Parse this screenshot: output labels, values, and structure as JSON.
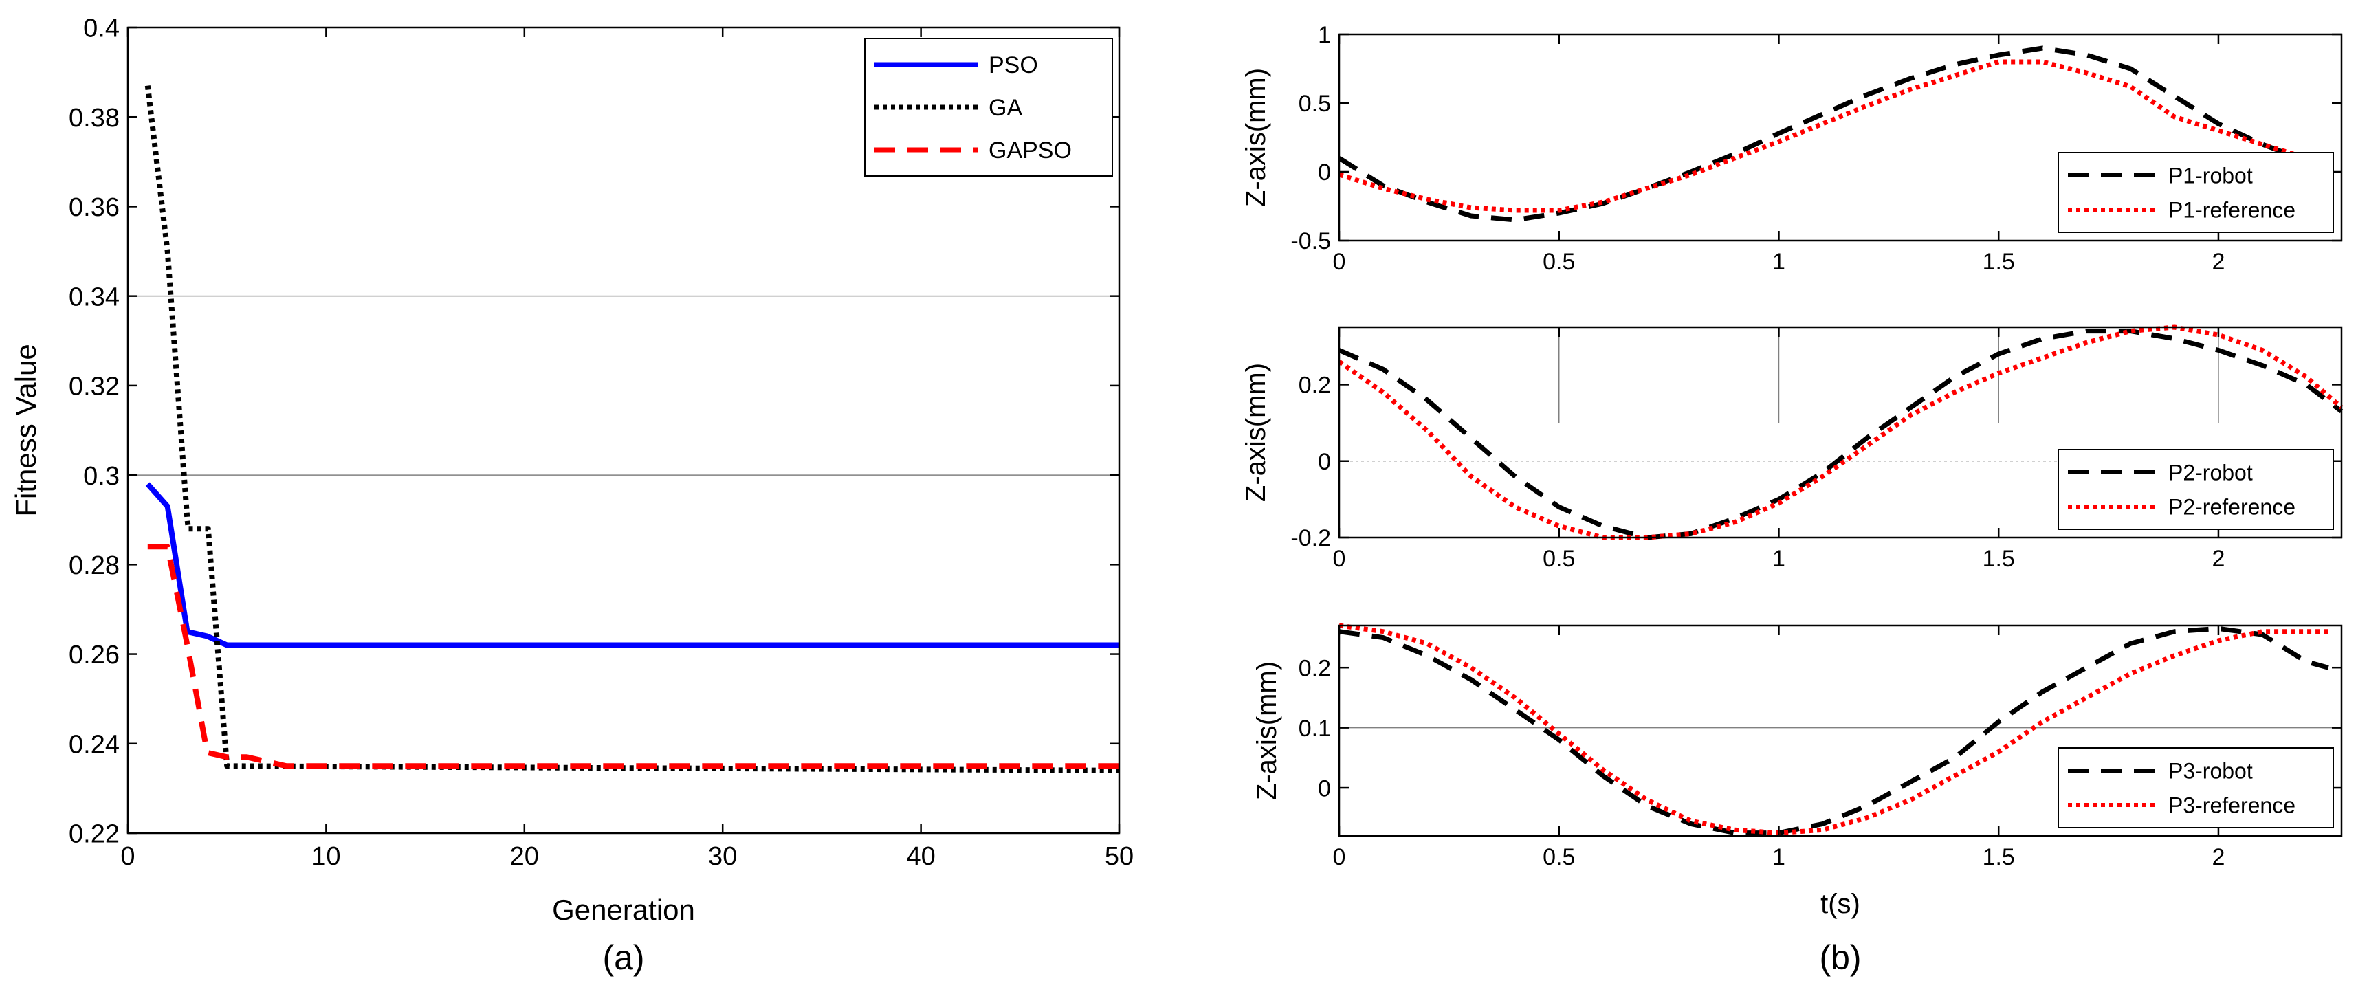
{
  "chart_data": [
    {
      "id": "a",
      "type": "line",
      "caption": "(a)",
      "xlabel": "Generation",
      "ylabel": "Fitness Value",
      "xlim": [
        0,
        50
      ],
      "ylim": [
        0.22,
        0.4
      ],
      "xticks": [
        0,
        10,
        20,
        30,
        40,
        50
      ],
      "yticks": [
        0.22,
        0.24,
        0.26,
        0.28,
        0.3,
        0.32,
        0.34,
        0.36,
        0.38,
        0.4
      ],
      "xtick_labels": [
        "0",
        "10",
        "20",
        "30",
        "40",
        "50"
      ],
      "ytick_labels": [
        "0.22",
        "0.24",
        "0.26",
        "0.28",
        "0.3",
        "0.32",
        "0.34",
        "0.36",
        "0.38",
        "0.4"
      ],
      "hgrid": [
        0.3,
        0.34
      ],
      "legend_position": "top-right",
      "series": [
        {
          "name": "PSO",
          "color": "#0000ff",
          "style": "solid",
          "x": [
            1,
            2,
            3,
            4,
            5,
            10,
            50
          ],
          "y": [
            0.298,
            0.293,
            0.265,
            0.264,
            0.262,
            0.262,
            0.262
          ]
        },
        {
          "name": "GA",
          "color": "#000000",
          "style": "dotted",
          "x": [
            1,
            2,
            3,
            3.05,
            4,
            4.05,
            5,
            50
          ],
          "y": [
            0.387,
            0.35,
            0.29,
            0.288,
            0.288,
            0.288,
            0.235,
            0.234
          ]
        },
        {
          "name": "GAPSO",
          "color": "#ff0000",
          "style": "dashed",
          "x": [
            1,
            2,
            3,
            4,
            5,
            6,
            8,
            10,
            50
          ],
          "y": [
            0.284,
            0.284,
            0.262,
            0.238,
            0.237,
            0.237,
            0.235,
            0.235,
            0.235
          ]
        }
      ]
    },
    {
      "id": "b1",
      "type": "line",
      "caption": "",
      "xlabel": "",
      "ylabel": "Z-axis(mm)",
      "xlim": [
        0,
        2.28
      ],
      "ylim": [
        -0.5,
        1
      ],
      "xticks": [
        0,
        0.5,
        1,
        1.5,
        2
      ],
      "yticks": [
        -0.5,
        0,
        0.5,
        1
      ],
      "xtick_labels": [
        "0",
        "0.5",
        "1",
        "1.5",
        "2"
      ],
      "ytick_labels": [
        "-0.5",
        "0",
        "0.5",
        "1"
      ],
      "legend_position": "bottom-right",
      "series": [
        {
          "name": "P1-robot",
          "color": "#000000",
          "style": "dashed",
          "x": [
            0,
            0.1,
            0.2,
            0.3,
            0.4,
            0.5,
            0.6,
            0.7,
            0.8,
            0.9,
            1.0,
            1.1,
            1.2,
            1.3,
            1.4,
            1.5,
            1.6,
            1.7,
            1.8,
            1.9,
            2.0,
            2.1,
            2.2
          ],
          "y": [
            0.1,
            -0.1,
            -0.22,
            -0.32,
            -0.35,
            -0.3,
            -0.23,
            -0.12,
            0.0,
            0.13,
            0.28,
            0.42,
            0.56,
            0.68,
            0.78,
            0.85,
            0.9,
            0.85,
            0.75,
            0.55,
            0.35,
            0.2,
            0.08
          ]
        },
        {
          "name": "P1-reference",
          "color": "#ff0000",
          "style": "dotted",
          "x": [
            0,
            0.1,
            0.2,
            0.3,
            0.4,
            0.5,
            0.6,
            0.7,
            0.8,
            0.9,
            1.0,
            1.1,
            1.2,
            1.3,
            1.4,
            1.5,
            1.6,
            1.7,
            1.8,
            1.9,
            2.0,
            2.1,
            2.2
          ],
          "y": [
            -0.02,
            -0.12,
            -0.2,
            -0.26,
            -0.28,
            -0.28,
            -0.22,
            -0.12,
            -0.02,
            0.1,
            0.22,
            0.35,
            0.48,
            0.6,
            0.7,
            0.8,
            0.8,
            0.72,
            0.62,
            0.4,
            0.3,
            0.2,
            0.1
          ]
        }
      ]
    },
    {
      "id": "b2",
      "type": "line",
      "caption": "",
      "xlabel": "",
      "ylabel": "Z-axis(mm)",
      "xlim": [
        0,
        2.28
      ],
      "ylim": [
        -0.2,
        0.35
      ],
      "xticks": [
        0,
        0.5,
        1,
        1.5,
        2
      ],
      "yticks": [
        -0.2,
        0,
        0.2
      ],
      "xtick_labels": [
        "0",
        "0.5",
        "1",
        "1.5",
        "2"
      ],
      "ytick_labels": [
        "-0.2",
        "0",
        "0.2"
      ],
      "legend_position": "bottom-right",
      "series": [
        {
          "name": "P2-robot",
          "color": "#000000",
          "style": "dashed",
          "x": [
            0,
            0.1,
            0.2,
            0.3,
            0.4,
            0.5,
            0.6,
            0.7,
            0.8,
            0.9,
            1.0,
            1.1,
            1.2,
            1.3,
            1.4,
            1.5,
            1.6,
            1.7,
            1.8,
            1.9,
            2.0,
            2.1,
            2.2,
            2.28
          ],
          "y": [
            0.29,
            0.24,
            0.16,
            0.06,
            -0.04,
            -0.12,
            -0.17,
            -0.2,
            -0.19,
            -0.15,
            -0.1,
            -0.03,
            0.06,
            0.14,
            0.22,
            0.28,
            0.32,
            0.34,
            0.34,
            0.32,
            0.29,
            0.25,
            0.2,
            0.13
          ]
        },
        {
          "name": "P2-reference",
          "color": "#ff0000",
          "style": "dotted",
          "x": [
            0,
            0.1,
            0.2,
            0.3,
            0.4,
            0.5,
            0.6,
            0.7,
            0.8,
            0.9,
            1.0,
            1.1,
            1.2,
            1.3,
            1.4,
            1.5,
            1.6,
            1.7,
            1.8,
            1.9,
            2.0,
            2.1,
            2.2,
            2.28
          ],
          "y": [
            0.26,
            0.18,
            0.08,
            -0.04,
            -0.12,
            -0.17,
            -0.2,
            -0.2,
            -0.19,
            -0.16,
            -0.11,
            -0.04,
            0.04,
            0.12,
            0.18,
            0.23,
            0.27,
            0.31,
            0.34,
            0.35,
            0.33,
            0.29,
            0.22,
            0.14
          ]
        }
      ]
    },
    {
      "id": "b3",
      "type": "line",
      "caption": "(b)",
      "xlabel": "t(s)",
      "ylabel": "Z-axis(mm)",
      "xlim": [
        0,
        2.28
      ],
      "ylim": [
        -0.08,
        0.27
      ],
      "xticks": [
        0,
        0.5,
        1,
        1.5,
        2
      ],
      "yticks": [
        0,
        0.1,
        0.2
      ],
      "xtick_labels": [
        "0",
        "0.5",
        "1",
        "1.5",
        "2"
      ],
      "ytick_labels": [
        "0",
        "0.1",
        "0.2"
      ],
      "hgrid": [
        0.1
      ],
      "legend_position": "bottom-right",
      "series": [
        {
          "name": "P3-robot",
          "color": "#000000",
          "style": "dashed",
          "x": [
            0,
            0.1,
            0.2,
            0.3,
            0.4,
            0.5,
            0.6,
            0.7,
            0.8,
            0.9,
            1.0,
            1.1,
            1.2,
            1.3,
            1.4,
            1.5,
            1.6,
            1.7,
            1.8,
            1.9,
            2.0,
            2.1,
            2.2,
            2.25
          ],
          "y": [
            0.26,
            0.25,
            0.22,
            0.18,
            0.13,
            0.08,
            0.02,
            -0.03,
            -0.06,
            -0.075,
            -0.075,
            -0.06,
            -0.03,
            0.01,
            0.05,
            0.11,
            0.16,
            0.2,
            0.24,
            0.26,
            0.265,
            0.255,
            0.21,
            0.2
          ]
        },
        {
          "name": "P3-reference",
          "color": "#ff0000",
          "style": "dotted",
          "x": [
            0,
            0.1,
            0.2,
            0.3,
            0.4,
            0.5,
            0.6,
            0.7,
            0.8,
            0.9,
            1.0,
            1.1,
            1.2,
            1.3,
            1.4,
            1.5,
            1.6,
            1.7,
            1.8,
            1.9,
            2.0,
            2.1,
            2.2,
            2.25
          ],
          "y": [
            0.27,
            0.26,
            0.24,
            0.2,
            0.15,
            0.09,
            0.03,
            -0.02,
            -0.055,
            -0.07,
            -0.075,
            -0.07,
            -0.05,
            -0.02,
            0.02,
            0.06,
            0.11,
            0.15,
            0.19,
            0.22,
            0.245,
            0.26,
            0.26,
            0.26
          ]
        }
      ]
    }
  ]
}
